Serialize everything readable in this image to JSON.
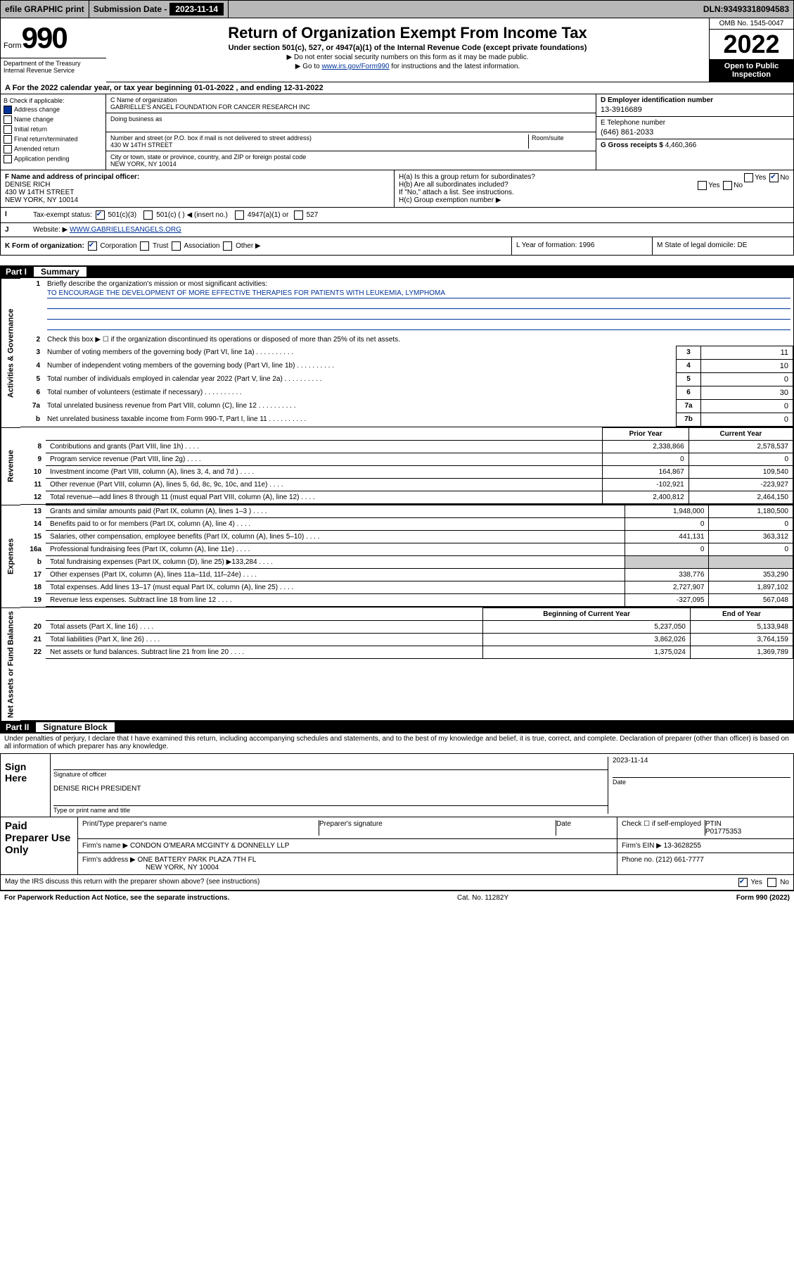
{
  "topbar": {
    "efile": "efile GRAPHIC print",
    "subdate_label": "Submission Date - ",
    "subdate": "2023-11-14",
    "dln_label": "DLN: ",
    "dln": "93493318094583"
  },
  "header": {
    "form_prefix": "Form",
    "form_num": "990",
    "dept": "Department of the Treasury\nInternal Revenue Service",
    "title": "Return of Organization Exempt From Income Tax",
    "subtitle": "Under section 501(c), 527, or 4947(a)(1) of the Internal Revenue Code (except private foundations)",
    "line1": "▶ Do not enter social security numbers on this form as it may be made public.",
    "line2_pre": "▶ Go to ",
    "line2_link": "www.irs.gov/Form990",
    "line2_post": " for instructions and the latest information.",
    "omb": "OMB No. 1545-0047",
    "year": "2022",
    "inspect": "Open to Public Inspection"
  },
  "taxyear": {
    "text_a": "A For the 2022 calendar year, or tax year beginning ",
    "begin": "01-01-2022",
    "mid": " , and ending ",
    "end": "12-31-2022"
  },
  "B": {
    "title": "B Check if applicable:",
    "addr_change": "Address change",
    "name_change": "Name change",
    "initial": "Initial return",
    "final": "Final return/terminated",
    "amended": "Amended return",
    "app": "Application pending"
  },
  "C": {
    "name_label": "C Name of organization",
    "name": "GABRIELLE'S ANGEL FOUNDATION FOR CANCER RESEARCH INC",
    "dba_label": "Doing business as",
    "street_label": "Number and street (or P.O. box if mail is not delivered to street address)",
    "room_label": "Room/suite",
    "street": "430 W 14TH STREET",
    "city_label": "City or town, state or province, country, and ZIP or foreign postal code",
    "city": "NEW YORK, NY  10014"
  },
  "D": {
    "label": "D Employer identification number",
    "val": "13-3916689"
  },
  "E": {
    "label": "E Telephone number",
    "val": "(646) 861-2033"
  },
  "G": {
    "label": "G Gross receipts $ ",
    "val": "4,460,366"
  },
  "F": {
    "label": "F  Name and address of principal officer:",
    "name": "DENISE RICH",
    "street": "430 W 14TH STREET",
    "city": "NEW YORK, NY  10014"
  },
  "H": {
    "a": "H(a)  Is this a group return for subordinates?",
    "b": "H(b)  Are all subordinates included?",
    "b_note": "If \"No,\" attach a list. See instructions.",
    "c": "H(c)  Group exemption number ▶",
    "yes": "Yes",
    "no": "No"
  },
  "I": {
    "label": "Tax-exempt status:",
    "o1": "501(c)(3)",
    "o2": "501(c) (  ) ◀ (insert no.)",
    "o3": "4947(a)(1) or",
    "o4": "527"
  },
  "J": {
    "label": "Website: ▶",
    "val": "WWW.GABRIELLESANGELS.ORG"
  },
  "K": {
    "label": "K Form of organization:",
    "corp": "Corporation",
    "trust": "Trust",
    "assoc": "Association",
    "other": "Other ▶"
  },
  "L": {
    "label": "L Year of formation: ",
    "val": "1996"
  },
  "M": {
    "label": "M State of legal domicile: ",
    "val": "DE"
  },
  "partI": {
    "num": "Part I",
    "title": "Summary"
  },
  "summary": {
    "q1": "Briefly describe the organization's mission or most significant activities:",
    "mission": "TO ENCOURAGE THE DEVELOPMENT OF MORE EFFECTIVE THERAPIES FOR PATIENTS WITH LEUKEMIA, LYMPHOMA",
    "q2": "Check this box ▶ ☐  if the organization discontinued its operations or disposed of more than 25% of its net assets.",
    "rows_gov": [
      {
        "n": "3",
        "t": "Number of voting members of the governing body (Part VI, line 1a)",
        "b": "3",
        "v": "11"
      },
      {
        "n": "4",
        "t": "Number of independent voting members of the governing body (Part VI, line 1b)",
        "b": "4",
        "v": "10"
      },
      {
        "n": "5",
        "t": "Total number of individuals employed in calendar year 2022 (Part V, line 2a)",
        "b": "5",
        "v": "0"
      },
      {
        "n": "6",
        "t": "Total number of volunteers (estimate if necessary)",
        "b": "6",
        "v": "30"
      },
      {
        "n": "7a",
        "t": "Total unrelated business revenue from Part VIII, column (C), line 12",
        "b": "7a",
        "v": "0"
      },
      {
        "n": "b",
        "t": "Net unrelated business taxable income from Form 990-T, Part I, line 11",
        "b": "7b",
        "v": "0"
      }
    ],
    "hdr_prior": "Prior Year",
    "hdr_curr": "Current Year",
    "revenue": [
      {
        "n": "8",
        "t": "Contributions and grants (Part VIII, line 1h)",
        "p": "2,338,866",
        "c": "2,578,537"
      },
      {
        "n": "9",
        "t": "Program service revenue (Part VIII, line 2g)",
        "p": "0",
        "c": "0"
      },
      {
        "n": "10",
        "t": "Investment income (Part VIII, column (A), lines 3, 4, and 7d )",
        "p": "164,867",
        "c": "109,540"
      },
      {
        "n": "11",
        "t": "Other revenue (Part VIII, column (A), lines 5, 6d, 8c, 9c, 10c, and 11e)",
        "p": "-102,921",
        "c": "-223,927"
      },
      {
        "n": "12",
        "t": "Total revenue—add lines 8 through 11 (must equal Part VIII, column (A), line 12)",
        "p": "2,400,812",
        "c": "2,464,150"
      }
    ],
    "expenses": [
      {
        "n": "13",
        "t": "Grants and similar amounts paid (Part IX, column (A), lines 1–3 )",
        "p": "1,948,000",
        "c": "1,180,500"
      },
      {
        "n": "14",
        "t": "Benefits paid to or for members (Part IX, column (A), line 4)",
        "p": "0",
        "c": "0"
      },
      {
        "n": "15",
        "t": "Salaries, other compensation, employee benefits (Part IX, column (A), lines 5–10)",
        "p": "441,131",
        "c": "363,312"
      },
      {
        "n": "16a",
        "t": "Professional fundraising fees (Part IX, column (A), line 11e)",
        "p": "0",
        "c": "0"
      },
      {
        "n": "b",
        "t": "Total fundraising expenses (Part IX, column (D), line 25) ▶133,284",
        "p": "",
        "c": ""
      },
      {
        "n": "17",
        "t": "Other expenses (Part IX, column (A), lines 11a–11d, 11f–24e)",
        "p": "338,776",
        "c": "353,290"
      },
      {
        "n": "18",
        "t": "Total expenses. Add lines 13–17 (must equal Part IX, column (A), line 25)",
        "p": "2,727,907",
        "c": "1,897,102"
      },
      {
        "n": "19",
        "t": "Revenue less expenses. Subtract line 18 from line 12",
        "p": "-327,095",
        "c": "567,048"
      }
    ],
    "hdr_beg": "Beginning of Current Year",
    "hdr_end": "End of Year",
    "netassets": [
      {
        "n": "20",
        "t": "Total assets (Part X, line 16)",
        "p": "5,237,050",
        "c": "5,133,948"
      },
      {
        "n": "21",
        "t": "Total liabilities (Part X, line 26)",
        "p": "3,862,026",
        "c": "3,764,159"
      },
      {
        "n": "22",
        "t": "Net assets or fund balances. Subtract line 21 from line 20",
        "p": "1,375,024",
        "c": "1,369,789"
      }
    ],
    "vlabels": {
      "gov": "Activities & Governance",
      "rev": "Revenue",
      "exp": "Expenses",
      "net": "Net Assets or Fund Balances"
    }
  },
  "partII": {
    "num": "Part II",
    "title": "Signature Block"
  },
  "sig": {
    "decl": "Under penalties of perjury, I declare that I have examined this return, including accompanying schedules and statements, and to the best of my knowledge and belief, it is true, correct, and complete. Declaration of preparer (other than officer) is based on all information of which preparer has any knowledge.",
    "sign_here": "Sign Here",
    "sig_officer": "Signature of officer",
    "sig_date": "2023-11-14",
    "date_lbl": "Date",
    "name": "DENISE RICH  PRESIDENT",
    "name_lbl": "Type or print name and title",
    "paid": "Paid Preparer Use Only",
    "prep_name_lbl": "Print/Type preparer's name",
    "prep_sig_lbl": "Preparer's signature",
    "check_lbl": "Check ☐ if self-employed",
    "ptin_lbl": "PTIN",
    "ptin": "P01775353",
    "firm_name_lbl": "Firm's name    ▶",
    "firm_name": "CONDON O'MEARA MCGINTY & DONNELLY LLP",
    "firm_ein_lbl": "Firm's EIN ▶",
    "firm_ein": "13-3628255",
    "firm_addr_lbl": "Firm's address ▶",
    "firm_addr1": "ONE BATTERY PARK PLAZA 7TH FL",
    "firm_addr2": "NEW YORK, NY  10004",
    "phone_lbl": "Phone no. ",
    "phone": "(212) 661-7777",
    "discuss": "May the IRS discuss this return with the preparer shown above? (see instructions)",
    "yes": "Yes",
    "no": "No"
  },
  "footer": {
    "left": "For Paperwork Reduction Act Notice, see the separate instructions.",
    "mid": "Cat. No. 11282Y",
    "right": "Form 990 (2022)"
  }
}
